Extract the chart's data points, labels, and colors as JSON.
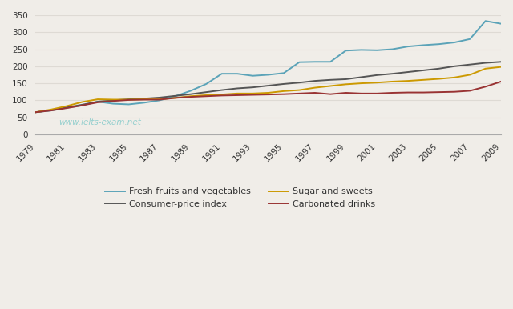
{
  "years": [
    1979,
    1980,
    1981,
    1982,
    1983,
    1984,
    1985,
    1986,
    1987,
    1988,
    1989,
    1990,
    1991,
    1992,
    1993,
    1994,
    1995,
    1996,
    1997,
    1998,
    1999,
    2000,
    2001,
    2002,
    2003,
    2004,
    2005,
    2006,
    2007,
    2008,
    2009
  ],
  "fresh_fruits_veg": [
    65,
    70,
    78,
    85,
    96,
    90,
    88,
    93,
    100,
    112,
    128,
    148,
    178,
    178,
    172,
    175,
    180,
    212,
    213,
    213,
    246,
    248,
    247,
    250,
    258,
    262,
    265,
    270,
    280,
    333,
    325
  ],
  "consumer_price": [
    65,
    71,
    79,
    87,
    96,
    100,
    103,
    105,
    108,
    113,
    118,
    124,
    130,
    135,
    138,
    143,
    148,
    152,
    157,
    160,
    162,
    168,
    174,
    178,
    183,
    188,
    193,
    200,
    205,
    210,
    213
  ],
  "sugar_sweets": [
    65,
    73,
    83,
    95,
    103,
    102,
    102,
    103,
    103,
    107,
    112,
    115,
    117,
    120,
    120,
    122,
    127,
    130,
    137,
    142,
    147,
    150,
    152,
    155,
    157,
    160,
    163,
    167,
    175,
    193,
    198
  ],
  "carbonated_drinks": [
    65,
    70,
    77,
    85,
    94,
    98,
    101,
    102,
    102,
    107,
    110,
    112,
    114,
    115,
    116,
    117,
    118,
    120,
    122,
    118,
    122,
    120,
    120,
    122,
    123,
    123,
    124,
    125,
    128,
    140,
    155
  ],
  "fresh_color": "#5ba3b8",
  "cpi_color": "#555555",
  "sugar_color": "#cc9900",
  "carbonated_color": "#993333",
  "ylim": [
    0,
    350
  ],
  "yticks": [
    0,
    50,
    100,
    150,
    200,
    250,
    300,
    350
  ],
  "xtick_years": [
    1979,
    1981,
    1983,
    1985,
    1987,
    1989,
    1991,
    1993,
    1995,
    1997,
    1999,
    2001,
    2003,
    2005,
    2007,
    2009
  ],
  "watermark": "www.ielts-exam.net",
  "legend_fresh": "Fresh fruits and vegetables",
  "legend_cpi": "Consumer-price index",
  "legend_sugar": "Sugar and sweets",
  "legend_carbonated": "Carbonated drinks",
  "bg_color": "#f0ede8",
  "plot_bg_color": "#f0ede8",
  "grid_color": "#dedad4",
  "linewidth": 1.4
}
